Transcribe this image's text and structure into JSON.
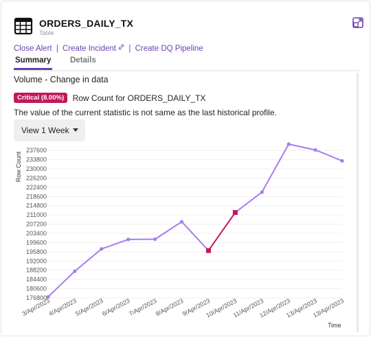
{
  "header": {
    "title": "ORDERS_DAILY_TX",
    "subtitle": "Table",
    "icon": "table-icon",
    "expand_icon": "expand-icon"
  },
  "actions": {
    "close_alert": "Close Alert",
    "create_incident": "Create Incident",
    "create_dq_pipeline": "Create DQ Pipeline",
    "separator": "|"
  },
  "tabs": [
    {
      "label": "Summary",
      "active": true
    },
    {
      "label": "Details",
      "active": false
    }
  ],
  "section": {
    "title": "Volume - Change in data",
    "badge": "Critical (8.00%)",
    "badge_color": "#c2185b",
    "badge_text": "Row Count for ORDERS_DAILY_TX",
    "description": "The value of the current statistic is not same as the last historical profile."
  },
  "dropdown": {
    "selected": "View 1 Week"
  },
  "colors": {
    "accent": "#6b3fb0",
    "line": "#a77bf0",
    "critical": "#c2185b"
  },
  "chart_data": {
    "type": "line",
    "xlabel": "Time",
    "ylabel": "Row Count",
    "ylim": [
      176000,
      240000
    ],
    "y_ticks": [
      176800,
      180600,
      184400,
      188200,
      192000,
      195800,
      199600,
      203400,
      207200,
      211000,
      214800,
      218600,
      222400,
      226200,
      230000,
      233800,
      237600
    ],
    "categories": [
      "3/Apr/2023",
      "4/Apr/2023",
      "5/Apr/2023",
      "6/Apr/2023",
      "7/Apr/2023",
      "8/Apr/2023",
      "9/Apr/2023",
      "10/Apr/2023",
      "11/Apr/2023",
      "12/Apr/2023",
      "13/Apr/2023",
      "13/Apr/2023"
    ],
    "values": [
      177200,
      187800,
      197000,
      200900,
      201000,
      208200,
      196300,
      212000,
      220400,
      240200,
      237800,
      233300
    ],
    "highlight_indices": [
      6,
      7
    ],
    "grid": true
  }
}
